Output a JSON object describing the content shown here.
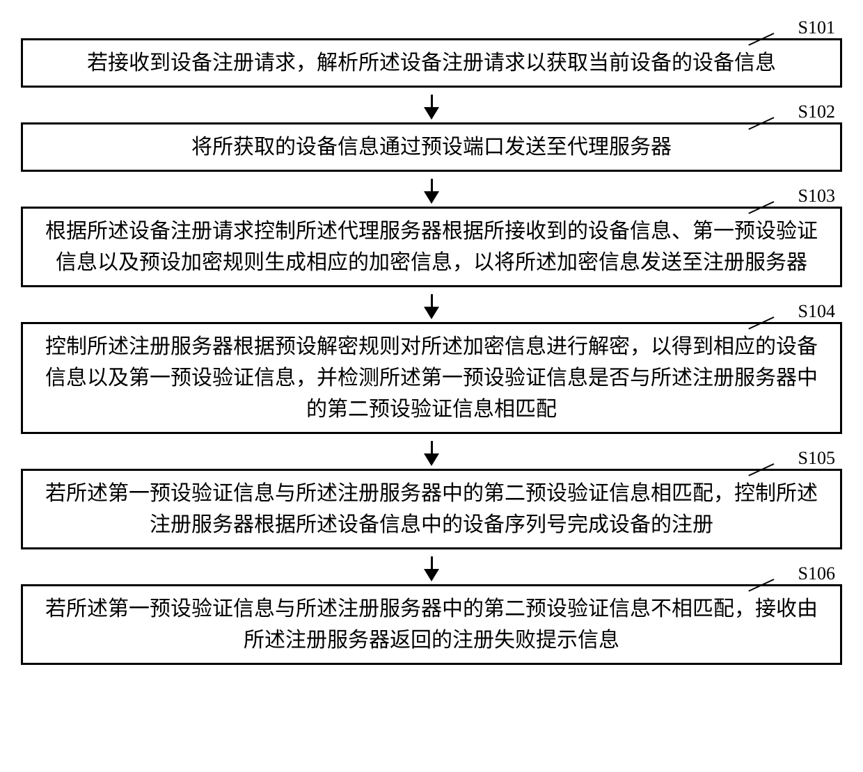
{
  "flowchart": {
    "type": "flowchart",
    "direction": "top-to-bottom",
    "background_color": "#ffffff",
    "box_border_color": "#000000",
    "box_border_width": 3,
    "text_color": "#000000",
    "font_family": "SimSun",
    "font_size": 30,
    "arrow_color": "#000000",
    "arrow_width": 3,
    "label_font_size": 26,
    "steps": [
      {
        "id": "S101",
        "label": "S101",
        "text": "若接收到设备注册请求，解析所述设备注册请求以获取当前设备的设备信息",
        "lines": 2
      },
      {
        "id": "S102",
        "label": "S102",
        "text": "将所获取的设备信息通过预设端口发送至代理服务器",
        "lines": 1
      },
      {
        "id": "S103",
        "label": "S103",
        "text": "根据所述设备注册请求控制所述代理服务器根据所接收到的设备信息、第一预设验证信息以及预设加密规则生成相应的加密信息，以将所述加密信息发送至注册服务器",
        "lines": 3
      },
      {
        "id": "S104",
        "label": "S104",
        "text": "控制所述注册服务器根据预设解密规则对所述加密信息进行解密，以得到相应的设备信息以及第一预设验证信息，并检测所述第一预设验证信息是否与所述注册服务器中的第二预设验证信息相匹配",
        "lines": 3
      },
      {
        "id": "S105",
        "label": "S105",
        "text": "若所述第一预设验证信息与所述注册服务器中的第二预设验证信息相匹配，控制所述注册服务器根据所述设备信息中的设备序列号完成设备的注册",
        "lines": 3
      },
      {
        "id": "S106",
        "label": "S106",
        "text": "若所述第一预设验证信息与所述注册服务器中的第二预设验证信息不相匹配，接收由所述注册服务器返回的注册失败提示信息",
        "lines": 2
      }
    ]
  }
}
